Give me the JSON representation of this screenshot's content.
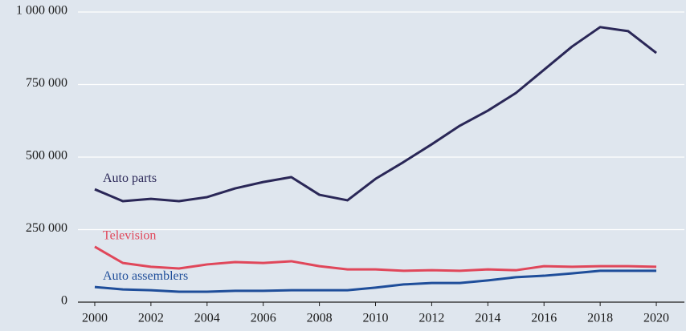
{
  "chart_data": {
    "type": "line",
    "x": [
      2000,
      2001,
      2002,
      2003,
      2004,
      2005,
      2006,
      2007,
      2008,
      2009,
      2010,
      2011,
      2012,
      2013,
      2014,
      2015,
      2016,
      2017,
      2018,
      2019,
      2020
    ],
    "series": [
      {
        "name": "Auto parts",
        "color": "#2a2757",
        "values": [
          389000,
          348000,
          356000,
          348000,
          362000,
          392000,
          414000,
          431000,
          370000,
          351000,
          425000,
          483000,
          544000,
          608000,
          660000,
          721000,
          801000,
          881000,
          948000,
          934000,
          859000
        ]
      },
      {
        "name": "Television",
        "color": "#e0475a",
        "values": [
          191000,
          135000,
          122000,
          116000,
          130000,
          138000,
          135000,
          141000,
          124000,
          113000,
          113000,
          108000,
          110000,
          108000,
          113000,
          110000,
          124000,
          122000,
          124000,
          124000,
          122000
        ]
      },
      {
        "name": "Auto assemblers",
        "color": "#1f4e9a",
        "values": [
          52000,
          44000,
          41000,
          36000,
          36000,
          39000,
          39000,
          41000,
          41000,
          41000,
          50000,
          61000,
          66000,
          66000,
          75000,
          86000,
          91000,
          99000,
          108000,
          108000,
          108000
        ]
      }
    ],
    "xlim": [
      1999.4,
      2021
    ],
    "xticks": [
      2000,
      2002,
      2004,
      2006,
      2008,
      2010,
      2012,
      2014,
      2016,
      2018,
      2020
    ],
    "ylim": [
      0,
      1000000
    ],
    "yticks": [
      0,
      {
        "value": 250000,
        "label": "250 000"
      },
      {
        "value": 500000,
        "label": "500 000"
      },
      {
        "value": 750000,
        "label": "750 000"
      },
      {
        "value": 1000000,
        "label": "1 000 000"
      }
    ],
    "grid": true
  }
}
